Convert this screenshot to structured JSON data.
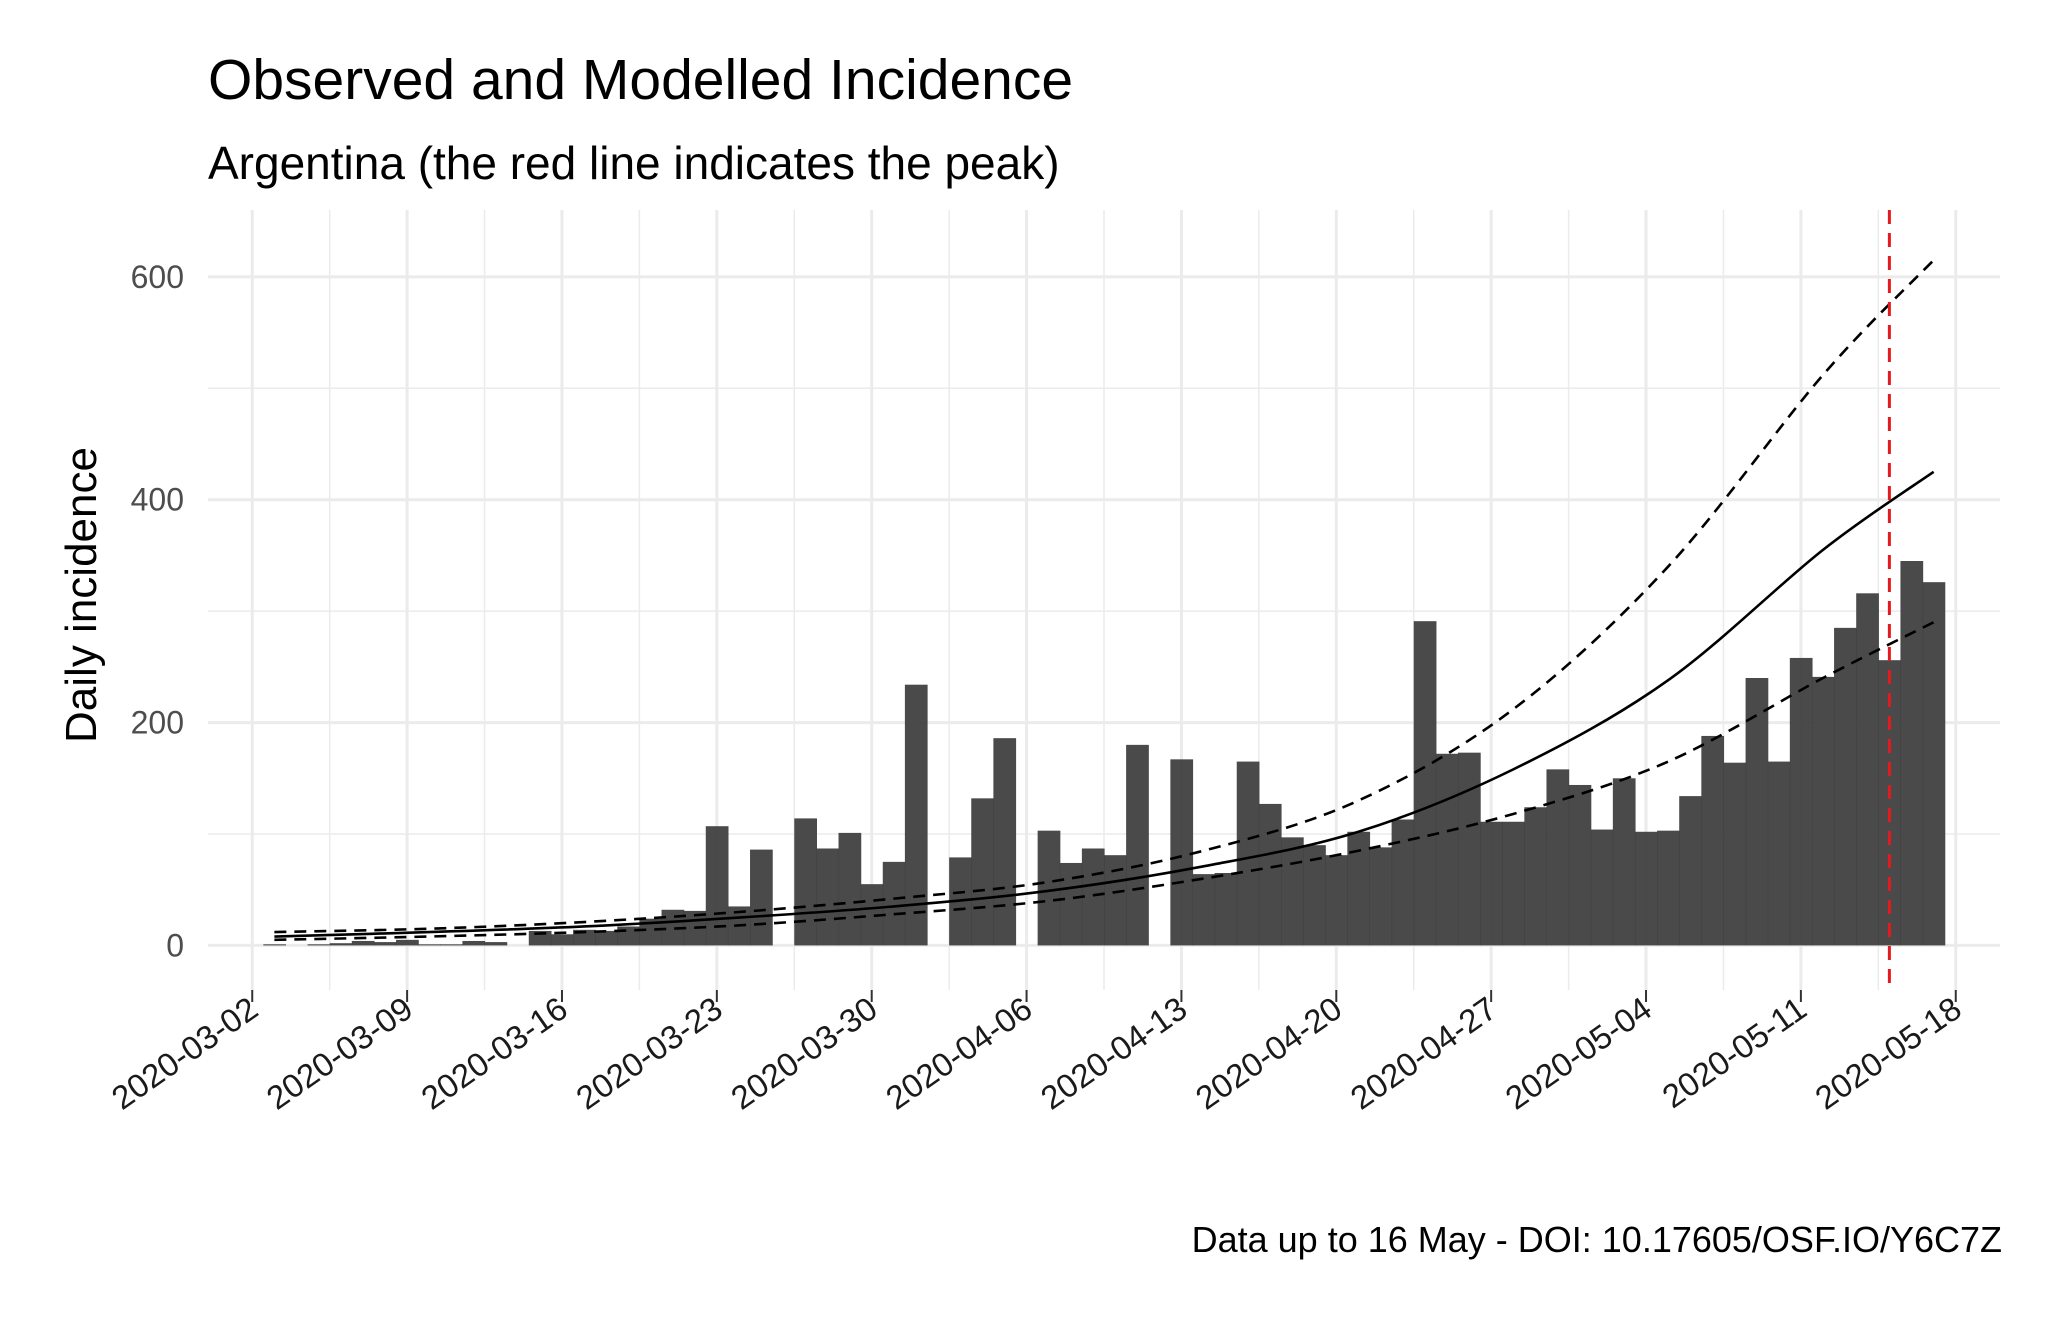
{
  "chart_data": {
    "type": "bar",
    "title": "Observed and Modelled Incidence",
    "subtitle": "Argentina (the red line indicates the peak)",
    "caption": "Data up to 16 May - DOI: 10.17605/OSF.IO/Y6C7Z",
    "ylabel": "Daily incidence",
    "xlabel": "",
    "ylim": [
      -40,
      660
    ],
    "y_ticks": [
      0,
      200,
      400,
      600
    ],
    "x_range": [
      "2020-02-29",
      "2020-05-20"
    ],
    "x_ticks": [
      "2020-03-02",
      "2020-03-09",
      "2020-03-16",
      "2020-03-23",
      "2020-03-30",
      "2020-04-06",
      "2020-04-13",
      "2020-04-20",
      "2020-04-27",
      "2020-05-04",
      "2020-05-11",
      "2020-05-18"
    ],
    "grid": true,
    "colors": {
      "bars": "#404040",
      "fit": "#000000",
      "peak": "#e41a1c",
      "grid": "#ebebeb"
    },
    "bars": {
      "dates": [
        "2020-03-03",
        "2020-03-04",
        "2020-03-05",
        "2020-03-06",
        "2020-03-07",
        "2020-03-08",
        "2020-03-09",
        "2020-03-10",
        "2020-03-11",
        "2020-03-12",
        "2020-03-13",
        "2020-03-14",
        "2020-03-15",
        "2020-03-16",
        "2020-03-17",
        "2020-03-18",
        "2020-03-19",
        "2020-03-20",
        "2020-03-21",
        "2020-03-22",
        "2020-03-23",
        "2020-03-24",
        "2020-03-25",
        "2020-03-26",
        "2020-03-27",
        "2020-03-28",
        "2020-03-29",
        "2020-03-30",
        "2020-03-31",
        "2020-04-01",
        "2020-04-02",
        "2020-04-03",
        "2020-04-04",
        "2020-04-05",
        "2020-04-06",
        "2020-04-07",
        "2020-04-08",
        "2020-04-09",
        "2020-04-10",
        "2020-04-11",
        "2020-04-12",
        "2020-04-13",
        "2020-04-14",
        "2020-04-15",
        "2020-04-16",
        "2020-04-17",
        "2020-04-18",
        "2020-04-19",
        "2020-04-20",
        "2020-04-21",
        "2020-04-22",
        "2020-04-23",
        "2020-04-24",
        "2020-04-25",
        "2020-04-26",
        "2020-04-27",
        "2020-04-28",
        "2020-04-29",
        "2020-04-30",
        "2020-05-01",
        "2020-05-02",
        "2020-05-03",
        "2020-05-04",
        "2020-05-05",
        "2020-05-06",
        "2020-05-07",
        "2020-05-08",
        "2020-05-09",
        "2020-05-10",
        "2020-05-11",
        "2020-05-12",
        "2020-05-13",
        "2020-05-14",
        "2020-05-15",
        "2020-05-16",
        "2020-05-17"
      ],
      "values": [
        1,
        0,
        1,
        2,
        4,
        3,
        5,
        1,
        1,
        4,
        3,
        0,
        13,
        10,
        14,
        13,
        17,
        24,
        32,
        31,
        107,
        35,
        86,
        0,
        114,
        87,
        101,
        55,
        75,
        234,
        0,
        79,
        132,
        186,
        0,
        103,
        74,
        87,
        81,
        180,
        0,
        167,
        64,
        65,
        165,
        127,
        97,
        90,
        81,
        102,
        88,
        113,
        291,
        172,
        173,
        111,
        111,
        124,
        158,
        144,
        104,
        150,
        102,
        103,
        134,
        188,
        164,
        240,
        165,
        258,
        241,
        285,
        316,
        256,
        345,
        326
      ]
    },
    "series": [
      {
        "name": "",
        "style": "solid",
        "dates": [
          "2020-03-03",
          "2020-03-10",
          "2020-03-17",
          "2020-03-24",
          "2020-03-31",
          "2020-04-07",
          "2020-04-14",
          "2020-04-21",
          "2020-04-28",
          "2020-05-05",
          "2020-05-12",
          "2020-05-17"
        ],
        "values": [
          8,
          12,
          17,
          25,
          35,
          49,
          71,
          102,
          158,
          238,
          355,
          425
        ]
      },
      {
        "name": "",
        "style": "dashed",
        "dates": [
          "2020-03-03",
          "2020-03-10",
          "2020-03-17",
          "2020-03-24",
          "2020-03-31",
          "2020-04-07",
          "2020-04-14",
          "2020-04-21",
          "2020-04-28",
          "2020-05-05",
          "2020-05-12",
          "2020-05-17"
        ],
        "values": [
          12,
          15,
          21,
          30,
          42,
          57,
          85,
          130,
          212,
          340,
          512,
          615
        ]
      },
      {
        "name": "",
        "style": "dashed",
        "dates": [
          "2020-03-03",
          "2020-03-10",
          "2020-03-17",
          "2020-03-24",
          "2020-03-31",
          "2020-04-07",
          "2020-04-14",
          "2020-04-21",
          "2020-04-28",
          "2020-05-05",
          "2020-05-12",
          "2020-05-17"
        ],
        "values": [
          5,
          8,
          12,
          18,
          28,
          40,
          60,
          85,
          118,
          165,
          240,
          290
        ]
      }
    ],
    "peak_date": "2020-05-15"
  }
}
